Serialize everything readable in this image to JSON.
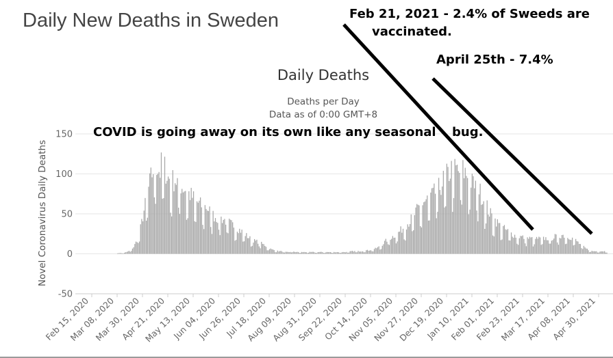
{
  "slide_title": "Daily New Deaths in Sweden",
  "annotations": {
    "feb_line1": "Feb 21, 2021 - 2.4% of Sweeds are",
    "feb_line2": "vaccinated.",
    "april": "April 25th - 7.4%",
    "covid_part1": "COVID is going away on its own like any seasonal",
    "covid_part2": "bug."
  },
  "colors": {
    "bar": "#a6a6a6",
    "grid": "#e6e6e6",
    "axis_text": "#666666",
    "title_text": "#333333",
    "annotation": "#000000"
  },
  "chart_data": {
    "type": "bar",
    "title": "Daily Deaths",
    "subtitle_line1": "Deaths per Day",
    "subtitle_line2": "Data as of 0:00 GMT+8",
    "ylabel": "Novel Coronavirus Daily Deaths",
    "xlabel": "",
    "ylim": [
      -50,
      150
    ],
    "yticks": [
      150,
      100,
      50,
      0,
      -50
    ],
    "grid": true,
    "x_start": "2020-02-15",
    "x_end": "2021-05-10",
    "xticks": [
      "Feb 15, 2020",
      "Mar 08, 2020",
      "Mar 30, 2020",
      "Apr 21, 2020",
      "May 13, 2020",
      "Jun 04, 2020",
      "Jun 26, 2020",
      "Jul 18, 2020",
      "Aug 09, 2020",
      "Aug 31, 2020",
      "Sep 22, 2020",
      "Oct 14, 2020",
      "Nov 05, 2020",
      "Nov 27, 2020",
      "Dec 19, 2020",
      "Jan 10, 2021",
      "Feb 01, 2021",
      "Feb 23, 2021",
      "Mar 17, 2021",
      "Apr 08, 2021",
      "Apr 30, 2021"
    ],
    "series": [
      {
        "values": [
          [
            0,
            0
          ],
          [
            21,
            0
          ],
          [
            24,
            1
          ],
          [
            27,
            1
          ],
          [
            30,
            2
          ],
          [
            33,
            4
          ],
          [
            36,
            8
          ],
          [
            39,
            16
          ],
          [
            42,
            30
          ],
          [
            45,
            50
          ],
          [
            48,
            70
          ],
          [
            51,
            88
          ],
          [
            53,
            98
          ],
          [
            55,
            108
          ],
          [
            57,
            100
          ],
          [
            59,
            95
          ],
          [
            61,
            110
          ],
          [
            63,
            100
          ],
          [
            66,
            88
          ],
          [
            69,
            85
          ],
          [
            72,
            86
          ],
          [
            75,
            82
          ],
          [
            78,
            78
          ],
          [
            81,
            75
          ],
          [
            84,
            70
          ],
          [
            87,
            66
          ],
          [
            90,
            62
          ],
          [
            93,
            58
          ],
          [
            96,
            55
          ],
          [
            99,
            55
          ],
          [
            102,
            50
          ],
          [
            105,
            45
          ],
          [
            108,
            42
          ],
          [
            111,
            42
          ],
          [
            114,
            40
          ],
          [
            117,
            38
          ],
          [
            120,
            35
          ],
          [
            123,
            33
          ],
          [
            126,
            30
          ],
          [
            129,
            27
          ],
          [
            132,
            24
          ],
          [
            135,
            20
          ],
          [
            138,
            17
          ],
          [
            141,
            15
          ],
          [
            144,
            14
          ],
          [
            147,
            12
          ],
          [
            150,
            10
          ],
          [
            153,
            7
          ],
          [
            156,
            5
          ],
          [
            159,
            4
          ],
          [
            162,
            3
          ],
          [
            165,
            3
          ],
          [
            168,
            2
          ],
          [
            171,
            2
          ],
          [
            174,
            3
          ],
          [
            177,
            2
          ],
          [
            180,
            2
          ],
          [
            183,
            2
          ],
          [
            186,
            2
          ],
          [
            189,
            2
          ],
          [
            192,
            2
          ],
          [
            195,
            2
          ],
          [
            198,
            2
          ],
          [
            201,
            2
          ],
          [
            204,
            2
          ],
          [
            207,
            2
          ],
          [
            210,
            2
          ],
          [
            213,
            2
          ],
          [
            216,
            2
          ],
          [
            219,
            2
          ],
          [
            222,
            2
          ],
          [
            225,
            3
          ],
          [
            228,
            3
          ],
          [
            231,
            3
          ],
          [
            234,
            3
          ],
          [
            237,
            4
          ],
          [
            240,
            4
          ],
          [
            243,
            5
          ],
          [
            246,
            6
          ],
          [
            249,
            8
          ],
          [
            252,
            11
          ],
          [
            255,
            15
          ],
          [
            258,
            18
          ],
          [
            261,
            20
          ],
          [
            264,
            23
          ],
          [
            267,
            26
          ],
          [
            270,
            30
          ],
          [
            273,
            34
          ],
          [
            276,
            38
          ],
          [
            279,
            44
          ],
          [
            282,
            50
          ],
          [
            285,
            55
          ],
          [
            288,
            60
          ],
          [
            291,
            63
          ],
          [
            294,
            66
          ],
          [
            297,
            70
          ],
          [
            300,
            74
          ],
          [
            303,
            80
          ],
          [
            306,
            88
          ],
          [
            309,
            92
          ],
          [
            312,
            98
          ],
          [
            315,
            100
          ],
          [
            318,
            95
          ],
          [
            321,
            98
          ],
          [
            324,
            94
          ],
          [
            327,
            90
          ],
          [
            330,
            82
          ],
          [
            333,
            80
          ],
          [
            336,
            74
          ],
          [
            339,
            66
          ],
          [
            342,
            58
          ],
          [
            345,
            48
          ],
          [
            348,
            42
          ],
          [
            351,
            38
          ],
          [
            354,
            33
          ],
          [
            357,
            30
          ],
          [
            360,
            27
          ],
          [
            363,
            25
          ],
          [
            366,
            22
          ],
          [
            369,
            20
          ],
          [
            372,
            20
          ],
          [
            375,
            19
          ],
          [
            378,
            18
          ],
          [
            381,
            18
          ],
          [
            384,
            17
          ],
          [
            387,
            18
          ],
          [
            390,
            17
          ],
          [
            393,
            18
          ],
          [
            396,
            18
          ],
          [
            399,
            18
          ],
          [
            402,
            20
          ],
          [
            405,
            20
          ],
          [
            408,
            22
          ],
          [
            411,
            21
          ],
          [
            414,
            20
          ],
          [
            417,
            18
          ],
          [
            420,
            16
          ],
          [
            423,
            12
          ],
          [
            426,
            9
          ],
          [
            429,
            6
          ],
          [
            432,
            4
          ],
          [
            435,
            3
          ],
          [
            447,
            3
          ]
        ]
      }
    ]
  }
}
